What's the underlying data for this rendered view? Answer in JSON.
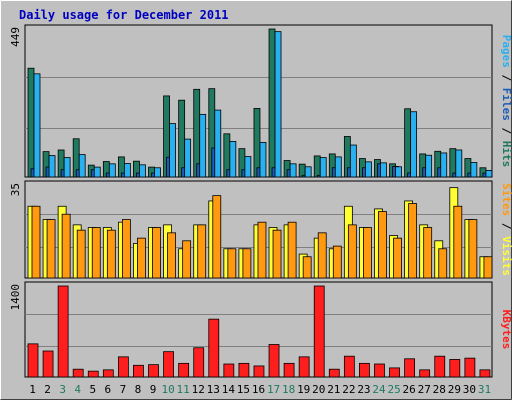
{
  "chart_data": [
    {
      "type": "bar",
      "title": "Daily usage for December 2011",
      "categories": [
        "1",
        "2",
        "3",
        "4",
        "5",
        "6",
        "7",
        "8",
        "9",
        "10",
        "11",
        "12",
        "13",
        "14",
        "15",
        "16",
        "17",
        "18",
        "19",
        "20",
        "21",
        "22",
        "23",
        "24",
        "25",
        "26",
        "27",
        "28",
        "29",
        "30",
        "31"
      ],
      "weekend_days": [
        "3",
        "4",
        "10",
        "11",
        "17",
        "18",
        "24",
        "25",
        "31"
      ],
      "y_max_label": "449",
      "ylim": [
        0,
        449
      ],
      "grid": true,
      "series": [
        {
          "name": "Hits",
          "color": "#1f7a60",
          "values": [
            330,
            77,
            82,
            116,
            36,
            47,
            61,
            48,
            30,
            246,
            233,
            266,
            268,
            131,
            86,
            208,
            449,
            50,
            39,
            64,
            70,
            123,
            56,
            53,
            40,
            207,
            70,
            78,
            86,
            56,
            28
          ]
        },
        {
          "name": "Files",
          "color": "#1c5cb8",
          "values": [
            25,
            30,
            22,
            22,
            22,
            12,
            12,
            12,
            12,
            60,
            28,
            40,
            88,
            22,
            22,
            28,
            28,
            22,
            5,
            5,
            28,
            28,
            28,
            40,
            32,
            12,
            28,
            28,
            12,
            12,
            12
          ]
        },
        {
          "name": "Pages",
          "color": "#29b0f0",
          "values": [
            313,
            65,
            59,
            68,
            30,
            40,
            41,
            37,
            28,
            162,
            115,
            190,
            203,
            108,
            62,
            105,
            441,
            40,
            31,
            59,
            61,
            97,
            46,
            43,
            31,
            198,
            66,
            73,
            82,
            44,
            20
          ]
        }
      ],
      "y_axis_label": {
        "name1": "Pages",
        "sep1": " / ",
        "name2": "Files",
        "sep2": " / ",
        "name3": "Hits"
      }
    },
    {
      "type": "bar",
      "y_max_label": "35",
      "ylim": [
        0,
        35
      ],
      "grid": true,
      "series": [
        {
          "name": "Visits",
          "color": "#ffff33",
          "values": [
            27,
            22,
            27,
            20,
            19,
            19,
            21,
            13,
            19,
            20,
            11,
            20,
            29,
            11,
            11,
            20,
            19,
            20,
            9,
            15,
            11,
            27,
            19,
            26,
            16,
            29,
            20,
            14,
            34,
            22,
            8
          ]
        },
        {
          "name": "Sites",
          "color": "#ff9a10",
          "values": [
            27,
            22,
            24,
            18,
            19,
            18,
            22,
            15,
            19,
            17,
            14,
            20,
            31,
            11,
            11,
            21,
            18,
            21,
            8,
            17,
            12,
            20,
            19,
            25,
            15,
            28,
            19,
            11,
            27,
            22,
            8
          ]
        }
      ],
      "y_axis_label": {
        "name1": "Sites",
        "sep1": " / ",
        "name2": "Visits"
      }
    },
    {
      "type": "bar",
      "y_max_label": "1400",
      "ylim": [
        0,
        1400
      ],
      "grid": true,
      "series": [
        {
          "name": "KBytes",
          "color": "#ff1e1e",
          "values": [
            510,
            400,
            1400,
            120,
            90,
            110,
            310,
            180,
            190,
            390,
            210,
            450,
            890,
            200,
            210,
            170,
            500,
            210,
            310,
            1400,
            120,
            320,
            210,
            200,
            140,
            280,
            110,
            320,
            270,
            290,
            110
          ]
        }
      ],
      "y_axis_label": {
        "name1": "KBytes"
      }
    }
  ],
  "colors": {
    "background": "#c0c0c0",
    "plot_background": "#c0c0c0",
    "title": "#0000c0",
    "axis_label_weekday": "#000000",
    "axis_label_weekend": "#1f7a60"
  }
}
